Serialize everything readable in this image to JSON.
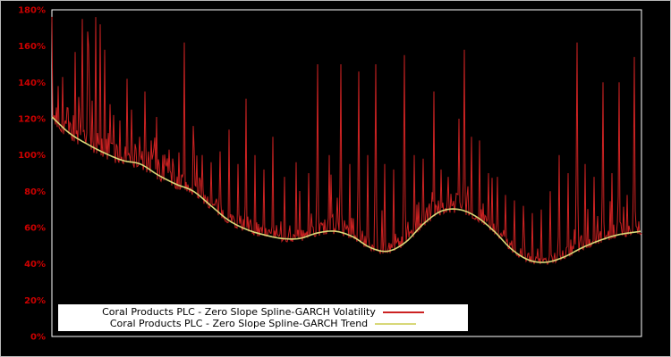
{
  "chart_data": {
    "type": "line",
    "title": "",
    "xlabel": "",
    "ylabel": "",
    "ylim": [
      0,
      180
    ],
    "background_color": "#000000",
    "plot_border_color": "#ffffff",
    "tick_color": "#cc0000",
    "grid": false,
    "legend_position": "bottom-center",
    "yticks": [
      {
        "value": 180,
        "label": "180%"
      },
      {
        "value": 160,
        "label": "160%"
      },
      {
        "value": 140,
        "label": "140%"
      },
      {
        "value": 120,
        "label": "120%"
      },
      {
        "value": 100,
        "label": "100%"
      },
      {
        "value": 80,
        "label": "80%"
      },
      {
        "value": 60,
        "label": "60%"
      },
      {
        "value": 40,
        "label": "40%"
      },
      {
        "value": 20,
        "label": "20%"
      },
      {
        "value": 0,
        "label": "0%"
      }
    ],
    "series": [
      {
        "name": "Coral Products PLC - Zero Slope Spline-GARCH Volatility",
        "color": "#cc2222",
        "style": "spiky-line"
      },
      {
        "name": "Coral Products PLC - Zero Slope Spline-GARCH Trend",
        "color": "#d8d878",
        "style": "smooth-line"
      }
    ],
    "trend_points": [
      [
        0.0,
        121
      ],
      [
        0.03,
        112
      ],
      [
        0.06,
        106
      ],
      [
        0.09,
        101
      ],
      [
        0.12,
        97
      ],
      [
        0.15,
        95
      ],
      [
        0.18,
        89
      ],
      [
        0.21,
        84
      ],
      [
        0.24,
        80
      ],
      [
        0.27,
        72
      ],
      [
        0.3,
        64
      ],
      [
        0.33,
        59
      ],
      [
        0.36,
        56
      ],
      [
        0.39,
        54
      ],
      [
        0.42,
        54
      ],
      [
        0.45,
        57
      ],
      [
        0.48,
        58
      ],
      [
        0.51,
        55
      ],
      [
        0.54,
        49
      ],
      [
        0.57,
        47
      ],
      [
        0.6,
        52
      ],
      [
        0.63,
        62
      ],
      [
        0.66,
        69
      ],
      [
        0.69,
        70
      ],
      [
        0.72,
        66
      ],
      [
        0.75,
        58
      ],
      [
        0.78,
        48
      ],
      [
        0.81,
        42
      ],
      [
        0.84,
        41
      ],
      [
        0.87,
        44
      ],
      [
        0.9,
        49
      ],
      [
        0.93,
        53
      ],
      [
        0.96,
        56
      ],
      [
        1.0,
        58
      ]
    ],
    "volatility_spikes": [
      [
        0.01,
        138
      ],
      [
        0.018,
        143
      ],
      [
        0.03,
        118
      ],
      [
        0.045,
        132
      ],
      [
        0.052,
        175
      ],
      [
        0.06,
        168
      ],
      [
        0.068,
        130
      ],
      [
        0.075,
        176
      ],
      [
        0.082,
        172
      ],
      [
        0.09,
        158
      ],
      [
        0.098,
        128
      ],
      [
        0.105,
        122
      ],
      [
        0.115,
        119
      ],
      [
        0.128,
        142
      ],
      [
        0.135,
        125
      ],
      [
        0.148,
        110
      ],
      [
        0.158,
        135
      ],
      [
        0.168,
        108
      ],
      [
        0.178,
        121
      ],
      [
        0.188,
        100
      ],
      [
        0.205,
        98
      ],
      [
        0.225,
        162
      ],
      [
        0.24,
        116
      ],
      [
        0.255,
        100
      ],
      [
        0.27,
        96
      ],
      [
        0.285,
        102
      ],
      [
        0.3,
        114
      ],
      [
        0.315,
        95
      ],
      [
        0.33,
        131
      ],
      [
        0.345,
        100
      ],
      [
        0.36,
        92
      ],
      [
        0.375,
        110
      ],
      [
        0.395,
        88
      ],
      [
        0.415,
        96
      ],
      [
        0.435,
        90
      ],
      [
        0.45,
        150
      ],
      [
        0.47,
        100
      ],
      [
        0.49,
        150
      ],
      [
        0.505,
        95
      ],
      [
        0.52,
        146
      ],
      [
        0.535,
        100
      ],
      [
        0.55,
        150
      ],
      [
        0.565,
        95
      ],
      [
        0.58,
        92
      ],
      [
        0.598,
        155
      ],
      [
        0.615,
        100
      ],
      [
        0.63,
        98
      ],
      [
        0.648,
        135
      ],
      [
        0.66,
        92
      ],
      [
        0.672,
        88
      ],
      [
        0.69,
        120
      ],
      [
        0.7,
        158
      ],
      [
        0.712,
        110
      ],
      [
        0.725,
        108
      ],
      [
        0.74,
        90
      ],
      [
        0.755,
        88
      ],
      [
        0.77,
        78
      ],
      [
        0.785,
        75
      ],
      [
        0.8,
        72
      ],
      [
        0.815,
        68
      ],
      [
        0.83,
        70
      ],
      [
        0.845,
        80
      ],
      [
        0.86,
        100
      ],
      [
        0.875,
        90
      ],
      [
        0.89,
        162
      ],
      [
        0.905,
        95
      ],
      [
        0.92,
        88
      ],
      [
        0.935,
        140
      ],
      [
        0.95,
        90
      ],
      [
        0.962,
        140
      ],
      [
        0.975,
        78
      ],
      [
        0.988,
        154
      ]
    ]
  },
  "legend": {
    "volatility_label": "Coral Products PLC - Zero Slope Spline-GARCH Volatility",
    "trend_label": "Coral Products PLC - Zero Slope Spline-GARCH Trend"
  }
}
